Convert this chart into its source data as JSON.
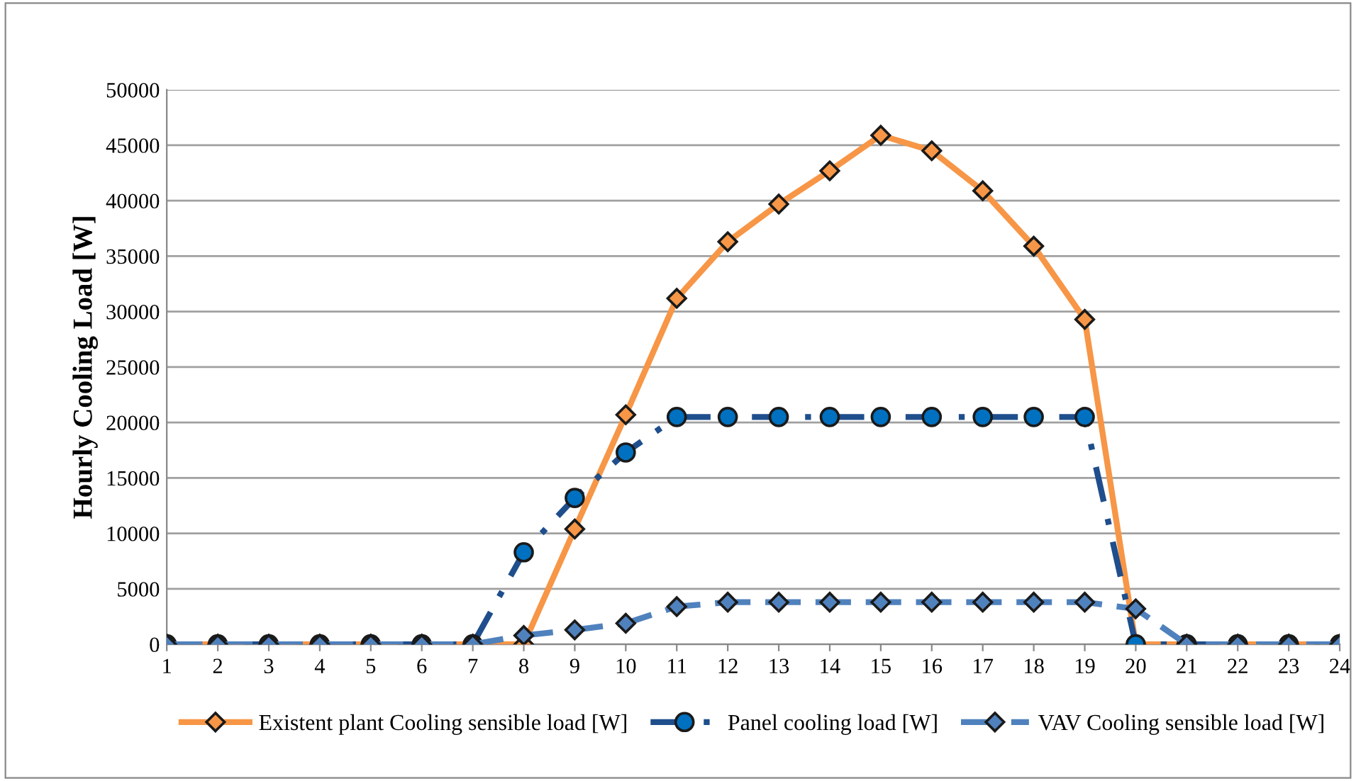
{
  "chart_data": {
    "type": "line",
    "ylabel": "Hourly Cooling Load [W]",
    "categories": [
      "1",
      "2",
      "3",
      "4",
      "5",
      "6",
      "7",
      "8",
      "9",
      "10",
      "11",
      "12",
      "13",
      "14",
      "15",
      "16",
      "17",
      "18",
      "19",
      "20",
      "21",
      "22",
      "23",
      "24"
    ],
    "series": [
      {
        "name": "Existent plant Cooling sensible load [W]",
        "color": "#f79646",
        "marker": "diamond",
        "line_style": "solid",
        "values": [
          0,
          0,
          0,
          0,
          0,
          0,
          0,
          0,
          10400,
          20700,
          31200,
          36300,
          39700,
          42700,
          45900,
          44500,
          40900,
          35900,
          29300,
          0,
          0,
          0,
          0,
          0
        ]
      },
      {
        "name": "Panel cooling load [W]",
        "color": "#1f4e8c",
        "marker": "circle",
        "line_style": "dashdot",
        "values": [
          0,
          0,
          0,
          0,
          0,
          0,
          0,
          8300,
          13200,
          17300,
          20500,
          20500,
          20500,
          20500,
          20500,
          20500,
          20500,
          20500,
          20500,
          0,
          0,
          0,
          0,
          0
        ]
      },
      {
        "name": "VAV Cooling sensible load [W]",
        "color": "#4f81bd",
        "marker": "diamond",
        "line_style": "dashed",
        "values": [
          0,
          0,
          0,
          0,
          0,
          0,
          0,
          800,
          1300,
          1900,
          3400,
          3800,
          3800,
          3800,
          3800,
          3800,
          3800,
          3800,
          3800,
          3200,
          0,
          0,
          0,
          0
        ]
      }
    ],
    "ylim": [
      0,
      50000
    ],
    "yticks": [
      0,
      5000,
      10000,
      15000,
      20000,
      25000,
      30000,
      35000,
      40000,
      45000,
      50000
    ],
    "grid": "y",
    "legend": "bottom"
  }
}
